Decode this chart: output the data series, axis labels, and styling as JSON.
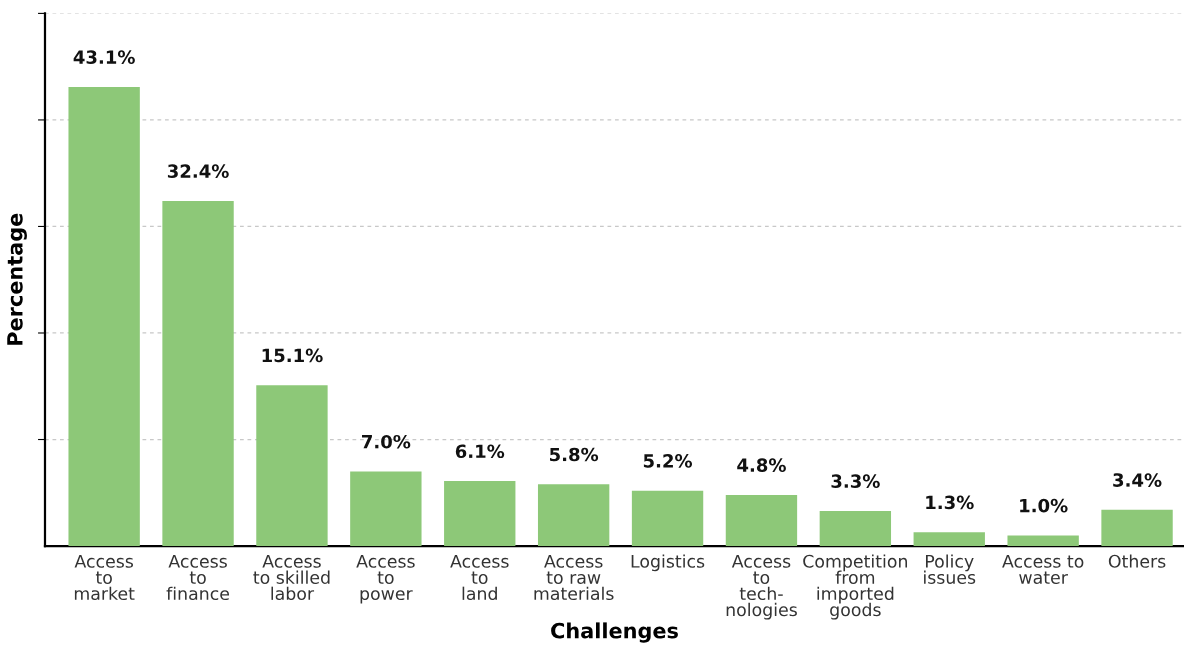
{
  "chart_data": {
    "type": "bar",
    "xlabel": "Challenges",
    "ylabel": "Percentage",
    "categories": [
      "Access\nto\nmarket",
      "Access\nto\nfinance",
      "Access\nto skilled\nlabor",
      "Access\nto\npower",
      "Access\nto\nland",
      "Access\nto raw\nmaterials",
      "Logistics",
      "Access\nto\ntech-\nnologies",
      "Competition\nfrom\nimported\ngoods",
      "Policy\nissues",
      "Access to\nwater",
      "Others"
    ],
    "values": [
      43.1,
      32.4,
      15.1,
      7.0,
      6.1,
      5.8,
      5.2,
      4.8,
      3.3,
      1.3,
      1.0,
      3.4
    ],
    "value_labels": [
      "43.1%",
      "32.4%",
      "15.1%",
      "7.0%",
      "6.1%",
      "5.8%",
      "5.2%",
      "4.8%",
      "3.3%",
      "1.3%",
      "1.0%",
      "3.4%"
    ],
    "color": "#8dc878",
    "ylim": [
      0,
      50
    ],
    "yticks": [
      {
        "value": 10,
        "label": null
      },
      {
        "value": 20,
        "label": null
      },
      {
        "value": 30,
        "label": null
      },
      {
        "value": 40,
        "label": null
      },
      {
        "value": 50,
        "label": null
      }
    ],
    "grid": "y",
    "tick_labels": "x"
  }
}
